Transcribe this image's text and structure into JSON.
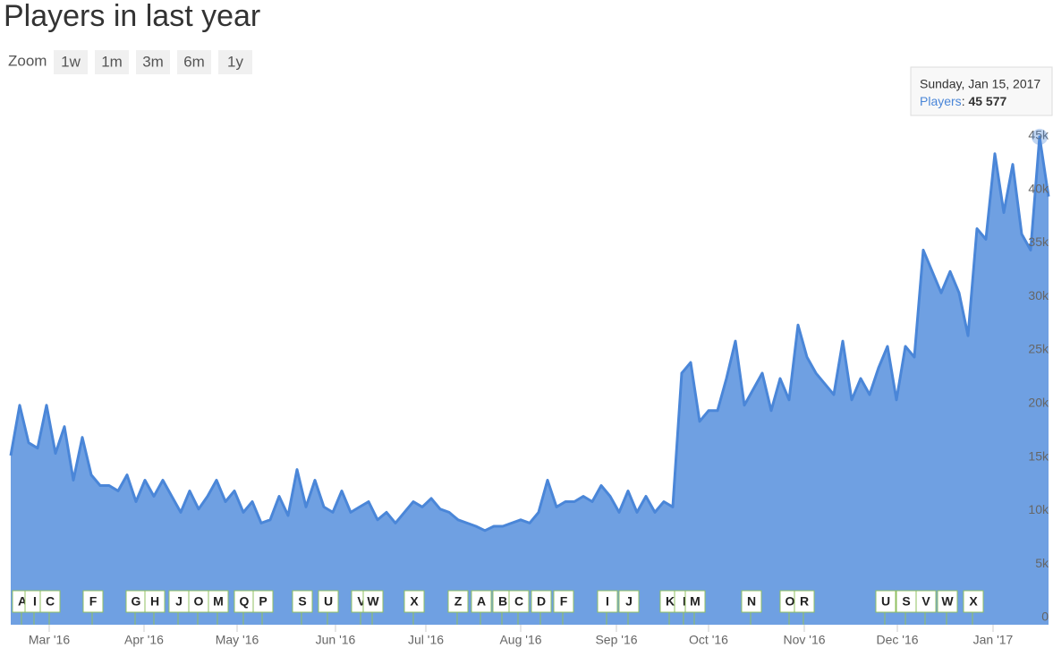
{
  "chart_data": {
    "type": "area",
    "title": "Players in last year",
    "zoom_label": "Zoom",
    "zoom_buttons": [
      "1w",
      "1m",
      "3m",
      "6m",
      "1y"
    ],
    "series": [
      {
        "name": "Players",
        "color": "#4a86d8",
        "fill": "#6fa0e2",
        "values": [
          15800,
          20500,
          17000,
          16500,
          20500,
          16000,
          18500,
          13500,
          17500,
          14000,
          13000,
          13000,
          12500,
          14000,
          11500,
          13500,
          12000,
          13500,
          12000,
          10500,
          12500,
          10800,
          12000,
          13500,
          11500,
          12500,
          10500,
          11500,
          9500,
          9800,
          12000,
          10200,
          14500,
          11000,
          13500,
          11000,
          10500,
          12500,
          10500,
          11000,
          11500,
          9800,
          10500,
          9500,
          10500,
          11500,
          11000,
          11800,
          10800,
          10500,
          9800,
          9500,
          9200,
          8800,
          9200,
          9200,
          9500,
          9800,
          9500,
          10500,
          13500,
          11000,
          11500,
          11500,
          12000,
          11500,
          13000,
          12000,
          10500,
          12500,
          10500,
          12000,
          10500,
          11500,
          11000,
          23500,
          24500,
          19000,
          20000,
          20000,
          23000,
          26500,
          20500,
          22000,
          23500,
          20000,
          23000,
          21000,
          28000,
          25000,
          23500,
          22500,
          21500,
          26500,
          21000,
          23000,
          21500,
          24000,
          26000,
          21000,
          26000,
          25000,
          35000,
          33000,
          31000,
          33000,
          31000,
          27000,
          37000,
          36000,
          44000,
          38500,
          43000,
          36500,
          35000,
          45577,
          40000
        ]
      }
    ],
    "ylim": [
      0,
      50000
    ],
    "yticks": [
      {
        "value": 0,
        "label": "0"
      },
      {
        "value": 5000,
        "label": "5k"
      },
      {
        "value": 10000,
        "label": "10k"
      },
      {
        "value": 15000,
        "label": "15k"
      },
      {
        "value": 20000,
        "label": "20k"
      },
      {
        "value": 25000,
        "label": "25k"
      },
      {
        "value": 30000,
        "label": "30k"
      },
      {
        "value": 35000,
        "label": "35k"
      },
      {
        "value": 40000,
        "label": "40k"
      },
      {
        "value": 45000,
        "label": "45k"
      },
      {
        "value": 50000,
        "label": ""
      }
    ],
    "xlim": [
      0,
      116
    ],
    "xticks": [
      {
        "value": 4.3,
        "label": "Mar '16"
      },
      {
        "value": 14.9,
        "label": "Apr '16"
      },
      {
        "value": 25.3,
        "label": "May '16"
      },
      {
        "value": 36.3,
        "label": "Jun '16"
      },
      {
        "value": 46.4,
        "label": "Jul '16"
      },
      {
        "value": 57,
        "label": "Aug '16"
      },
      {
        "value": 67.7,
        "label": "Sep '16"
      },
      {
        "value": 78,
        "label": "Oct '16"
      },
      {
        "value": 88.7,
        "label": "Nov '16"
      },
      {
        "value": 99.1,
        "label": "Dec '16"
      },
      {
        "value": 109.8,
        "label": "Jan '17"
      }
    ],
    "grid": true,
    "annotations": [
      {
        "value": 1.2,
        "label": "A"
      },
      {
        "value": 2.6,
        "label": "I"
      },
      {
        "value": 4.3,
        "label": "C"
      },
      {
        "value": 9.1,
        "label": "F"
      },
      {
        "value": 13.9,
        "label": "G"
      },
      {
        "value": 16,
        "label": "H"
      },
      {
        "value": 18.7,
        "label": "J"
      },
      {
        "value": 20.9,
        "label": "O"
      },
      {
        "value": 23.1,
        "label": "M"
      },
      {
        "value": 26,
        "label": "Q"
      },
      {
        "value": 28.1,
        "label": "P"
      },
      {
        "value": 32.5,
        "label": "S"
      },
      {
        "value": 35.4,
        "label": "U"
      },
      {
        "value": 39.1,
        "label": "V"
      },
      {
        "value": 40.4,
        "label": "W"
      },
      {
        "value": 45,
        "label": "X"
      },
      {
        "value": 49.9,
        "label": "Z"
      },
      {
        "value": 52.5,
        "label": "A"
      },
      {
        "value": 54.9,
        "label": "B"
      },
      {
        "value": 56.7,
        "label": "C"
      },
      {
        "value": 59.2,
        "label": "D"
      },
      {
        "value": 61.7,
        "label": "F"
      },
      {
        "value": 66.6,
        "label": "I"
      },
      {
        "value": 69,
        "label": "J"
      },
      {
        "value": 73.6,
        "label": "K"
      },
      {
        "value": 75.2,
        "label": "I"
      },
      {
        "value": 76.4,
        "label": "M"
      },
      {
        "value": 82.7,
        "label": "N"
      },
      {
        "value": 87,
        "label": "O"
      },
      {
        "value": 88.6,
        "label": "R"
      },
      {
        "value": 97.7,
        "label": "U"
      },
      {
        "value": 100,
        "label": "S"
      },
      {
        "value": 102.2,
        "label": "V"
      },
      {
        "value": 104.6,
        "label": "W"
      },
      {
        "value": 107.5,
        "label": "X"
      }
    ],
    "tooltip": {
      "date": "Sunday, Jan 15, 2017",
      "series": "Players",
      "value": 45577,
      "value_label": "45 577"
    }
  }
}
